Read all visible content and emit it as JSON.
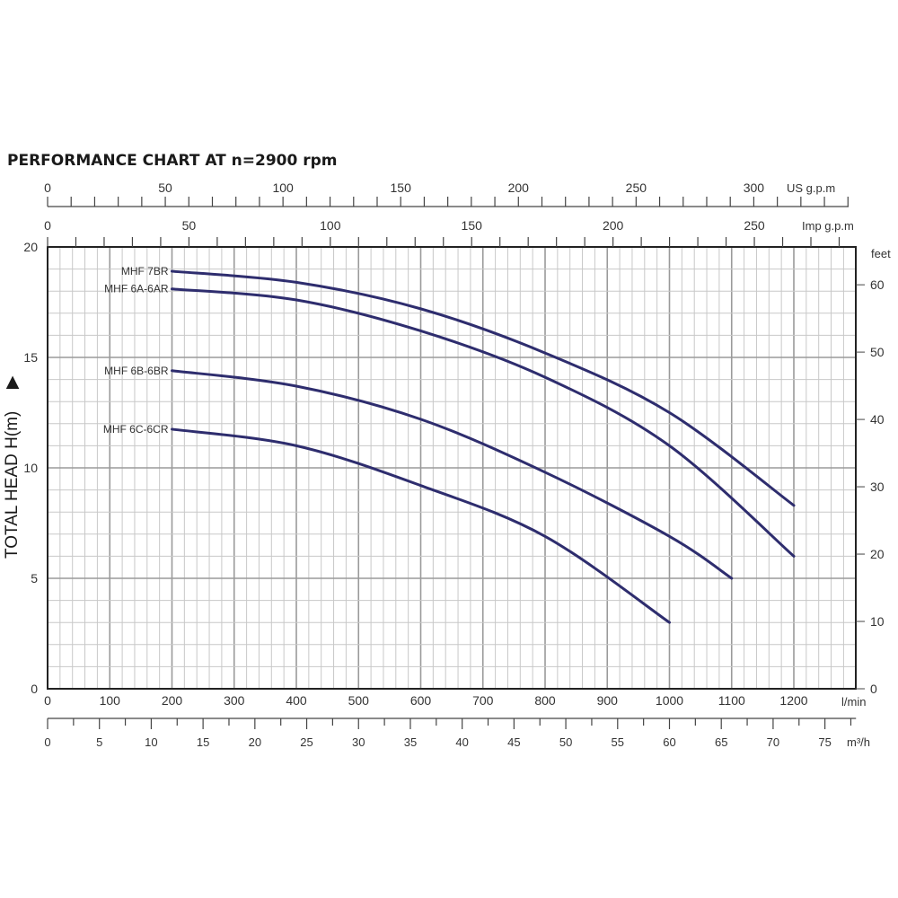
{
  "chart_data": {
    "type": "line",
    "title": "PERFORMANCE CHART AT n=2900 rpm",
    "xlabel": "l/min",
    "ylabel": "TOTAL HEAD H(m)",
    "xlim": [
      0,
      1300
    ],
    "ylim": [
      0,
      20
    ],
    "grid": true,
    "x_ticks": [
      0,
      100,
      200,
      300,
      400,
      500,
      600,
      700,
      800,
      900,
      1000,
      1100,
      1200
    ],
    "y_ticks": [
      0,
      5,
      10,
      15,
      20
    ],
    "secondary_axes": {
      "us_gpm": {
        "label": "US g.p.m",
        "ticks": [
          0,
          50,
          100,
          150,
          200,
          250,
          300
        ]
      },
      "imp_gpm": {
        "label": "Imp g.p.m",
        "ticks": [
          0,
          50,
          100,
          150,
          200,
          250
        ]
      },
      "feet": {
        "label": "feet",
        "ticks": [
          0,
          10,
          20,
          30,
          40,
          50,
          60
        ]
      },
      "m3h": {
        "label": "m³/h",
        "ticks": [
          0,
          5,
          10,
          15,
          20,
          25,
          30,
          35,
          40,
          45,
          50,
          55,
          60,
          65,
          70,
          75
        ]
      }
    },
    "series": [
      {
        "name": "MHF 7BR",
        "x": [
          200,
          400,
          600,
          800,
          1000,
          1200
        ],
        "values": [
          18.9,
          18.4,
          17.2,
          15.2,
          12.5,
          8.3
        ]
      },
      {
        "name": "MHF 6A-6AR",
        "x": [
          200,
          400,
          600,
          800,
          1000,
          1200
        ],
        "values": [
          18.1,
          17.6,
          16.2,
          14.1,
          11.0,
          6.0
        ]
      },
      {
        "name": "MHF 6B-6BR",
        "x": [
          200,
          400,
          600,
          800,
          1000,
          1100
        ],
        "values": [
          14.4,
          13.7,
          12.2,
          9.8,
          6.9,
          5.0
        ]
      },
      {
        "name": "MHF 6C-6CR",
        "x": [
          200,
          400,
          600,
          800,
          1000
        ],
        "values": [
          11.75,
          11.0,
          9.2,
          6.9,
          3.0
        ]
      }
    ],
    "line_color": "#2e2d6e",
    "legend_position": "inline-left"
  }
}
